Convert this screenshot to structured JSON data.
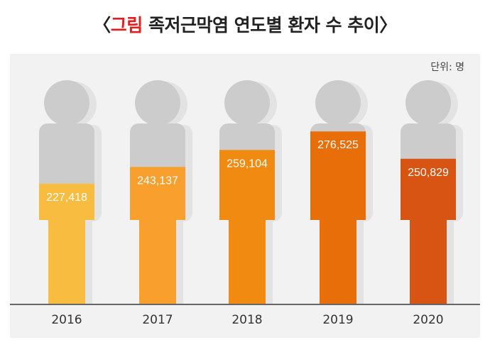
{
  "title": {
    "open": "〈",
    "highlight": "그림",
    "rest": " 족저근막염 연도별 환자 수 추이",
    "close": "〉"
  },
  "unit_label": "단위: 명",
  "colors": {
    "highlight": "#e41e1e",
    "figure_gray": "#cccccc",
    "panel": "#f2f2f2",
    "series": [
      "#f8bd40",
      "#f89f2e",
      "#f08a10",
      "#e86e0a",
      "#d85412"
    ]
  },
  "chart_data": {
    "type": "bar",
    "categories": [
      "2016",
      "2017",
      "2018",
      "2019",
      "2020"
    ],
    "values": [
      227418,
      243137,
      259104,
      276525,
      250829
    ],
    "value_labels": [
      "227,418",
      "243,137",
      "259,104",
      "276,525",
      "250,829"
    ],
    "ylim": [
      200000,
      280000
    ],
    "grid": false,
    "style": "human-figure pictograph"
  }
}
